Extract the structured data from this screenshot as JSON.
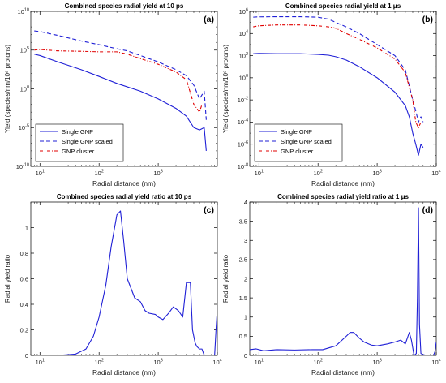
{
  "colors": {
    "blue": "#1f1fd6",
    "red": "#e00000",
    "axis": "#000000"
  },
  "chart_data": [
    {
      "panel": "(a)",
      "type": "line",
      "title": "Combined species radial yield at 10 ps",
      "xlabel": "Radial distance (nm)",
      "ylabel": "Yield (species/nm/10⁶ protons)",
      "xscale": "log",
      "yscale": "log",
      "xlim": [
        7,
        10000
      ],
      "ylim": [
        1e-10,
        10000000000.0
      ],
      "xticks": [
        {
          "v": 10,
          "m": "10",
          "e": "1"
        },
        {
          "v": 100,
          "m": "10",
          "e": "2"
        },
        {
          "v": 1000,
          "m": "10",
          "e": "3"
        }
      ],
      "yticks": [
        {
          "v": 1e-10,
          "m": "10",
          "e": "-10"
        },
        {
          "v": 1e-05,
          "m": "10",
          "e": "-5"
        },
        {
          "v": 1,
          "m": "10",
          "e": "0"
        },
        {
          "v": 100000.0,
          "m": "10",
          "e": "5"
        },
        {
          "v": 10000000000.0,
          "m": "10",
          "e": "10"
        }
      ],
      "legend": {
        "position": "bottom-left"
      },
      "series": [
        {
          "name": "Single GNP",
          "color": "#1f1fd6",
          "dash": "solid",
          "x": [
            8,
            10,
            20,
            50,
            100,
            200,
            500,
            1000,
            2000,
            3000,
            4000,
            5000,
            6000,
            6500
          ],
          "y": [
            30000.0,
            20000.0,
            3000.0,
            300,
            40,
            5,
            0.5,
            0.05,
            0.003,
            0.0003,
            1e-05,
            5e-06,
            1e-05,
            1e-08
          ]
        },
        {
          "name": "Single GNP scaled",
          "color": "#1f1fd6",
          "dash": "dashed",
          "x": [
            8,
            10,
            20,
            50,
            100,
            200,
            300,
            500,
            1000,
            2000,
            3000,
            4000,
            5000,
            6000,
            6500
          ],
          "y": [
            30000000.0,
            25000000.0,
            8000000.0,
            1500000.0,
            500000.0,
            150000.0,
            80000.0,
            20000.0,
            3000,
            300,
            50,
            3,
            0.05,
            0.5,
            0.0001
          ]
        },
        {
          "name": "GNP cluster",
          "color": "#e00000",
          "dash": "dashdot",
          "x": [
            8,
            10,
            20,
            50,
            100,
            200,
            300,
            500,
            1000,
            2000,
            3000,
            4000,
            5000,
            5500
          ],
          "y": [
            100000.0,
            120000.0,
            80000.0,
            70000.0,
            60000.0,
            60000.0,
            30000.0,
            8000,
            1500,
            150,
            15,
            0.01,
            0.001,
            0.01
          ]
        }
      ]
    },
    {
      "panel": "(b)",
      "type": "line",
      "title": "Combined species radial yield at 1 μs",
      "xlabel": "Radial distance (nm)",
      "ylabel": "Yield (species/nm/10⁶ protons)",
      "xscale": "log",
      "yscale": "log",
      "xlim": [
        7,
        10000
      ],
      "ylim": [
        1e-08,
        1000000.0
      ],
      "xticks": [
        {
          "v": 10,
          "m": "10",
          "e": "1"
        },
        {
          "v": 100,
          "m": "10",
          "e": "2"
        },
        {
          "v": 1000,
          "m": "10",
          "e": "3"
        },
        {
          "v": 10000,
          "m": "10",
          "e": "4"
        }
      ],
      "yticks": [
        {
          "v": 1e-08,
          "m": "10",
          "e": "-8"
        },
        {
          "v": 1e-06,
          "m": "10",
          "e": "-6"
        },
        {
          "v": 0.0001,
          "m": "10",
          "e": "-4"
        },
        {
          "v": 0.01,
          "m": "10",
          "e": "-2"
        },
        {
          "v": 1,
          "m": "10",
          "e": "0"
        },
        {
          "v": 100,
          "m": "10",
          "e": "2"
        },
        {
          "v": 10000.0,
          "m": "10",
          "e": "4"
        },
        {
          "v": 1000000.0,
          "m": "10",
          "e": "6"
        }
      ],
      "legend": {
        "position": "bottom-left"
      },
      "series": [
        {
          "name": "Single GNP",
          "color": "#1f1fd6",
          "dash": "solid",
          "x": [
            8,
            10,
            20,
            50,
            100,
            150,
            200,
            300,
            500,
            1000,
            2000,
            3000,
            3500,
            4000,
            4500,
            5000,
            5500,
            6000
          ],
          "y": [
            150,
            160,
            150,
            150,
            130,
            110,
            80,
            40,
            10,
            1,
            0.05,
            0.003,
            0.0003,
            1e-05,
            1e-06,
            1e-07,
            1e-06,
            5e-07
          ]
        },
        {
          "name": "Single GNP scaled",
          "color": "#1f1fd6",
          "dash": "dashed",
          "x": [
            8,
            10,
            20,
            50,
            100,
            150,
            200,
            300,
            500,
            1000,
            2000,
            3000,
            4000,
            4500,
            5000,
            5500,
            6000
          ],
          "y": [
            300000.0,
            320000.0,
            330000.0,
            330000.0,
            300000.0,
            200000.0,
            100000.0,
            40000.0,
            10000.0,
            1000,
            100,
            5,
            0.01,
            0.001,
            0.0001,
            0.0003,
            0.0001
          ]
        },
        {
          "name": "GNP cluster",
          "color": "#e00000",
          "dash": "dashdot",
          "x": [
            8,
            10,
            20,
            50,
            100,
            150,
            200,
            300,
            500,
            1000,
            2000,
            3000,
            4000,
            4500,
            5000,
            5500
          ],
          "y": [
            40000.0,
            50000.0,
            60000.0,
            60000.0,
            50000.0,
            40000.0,
            30000.0,
            10000.0,
            3000,
            500,
            50,
            3,
            0.01,
            0.0001,
            3e-05,
            0.0001
          ]
        }
      ]
    },
    {
      "panel": "(c)",
      "type": "line",
      "title": "Combined species radial yield ratio at 10 ps",
      "xlabel": "Radial distance (nm)",
      "ylabel": "Radial yield ratio",
      "xscale": "log",
      "yscale": "linear",
      "xlim": [
        7,
        10000
      ],
      "ylim": [
        0,
        1.2
      ],
      "xticks": [
        {
          "v": 10,
          "m": "10",
          "e": "1"
        },
        {
          "v": 100,
          "m": "10",
          "e": "2"
        },
        {
          "v": 1000,
          "m": "10",
          "e": "3"
        },
        {
          "v": 10000,
          "m": "10",
          "e": "4"
        }
      ],
      "yticks": [
        {
          "v": 0,
          "m": "0"
        },
        {
          "v": 0.2,
          "m": "0.2"
        },
        {
          "v": 0.4,
          "m": "0.4"
        },
        {
          "v": 0.6,
          "m": "0.6"
        },
        {
          "v": 0.8,
          "m": "0.8"
        },
        {
          "v": 1,
          "m": "1"
        }
      ],
      "series": [
        {
          "name": "",
          "color": "#1f1fd6",
          "dash": "solid",
          "x": [
            7,
            20,
            40,
            60,
            80,
            100,
            130,
            160,
            200,
            230,
            260,
            300,
            400,
            500,
            600,
            700,
            900,
            1000,
            1200,
            1500,
            1800,
            2200,
            2600,
            3000,
            3200,
            3500,
            3800,
            4200,
            4500,
            5000,
            5500,
            6000,
            7000,
            8000,
            9000,
            9500,
            9800,
            10000
          ],
          "y": [
            0,
            0,
            0.01,
            0.05,
            0.15,
            0.3,
            0.55,
            0.85,
            1.1,
            1.13,
            0.9,
            0.6,
            0.45,
            0.42,
            0.35,
            0.33,
            0.32,
            0.3,
            0.28,
            0.33,
            0.38,
            0.35,
            0.3,
            0.57,
            0.57,
            0.57,
            0.2,
            0.1,
            0.07,
            0.05,
            0.05,
            0,
            0,
            0,
            0,
            0.2,
            0.3,
            0.33
          ]
        }
      ]
    },
    {
      "panel": "(d)",
      "type": "line",
      "title": "Combined species radial yield ratio at 1 μs",
      "xlabel": "Radial distance (nm)",
      "ylabel": "Radial yield ratio",
      "xscale": "log",
      "yscale": "linear",
      "xlim": [
        7,
        10000
      ],
      "ylim": [
        0,
        4
      ],
      "xticks": [
        {
          "v": 10,
          "m": "10",
          "e": "1"
        },
        {
          "v": 100,
          "m": "10",
          "e": "2"
        },
        {
          "v": 1000,
          "m": "10",
          "e": "3"
        },
        {
          "v": 10000,
          "m": "10",
          "e": "4"
        }
      ],
      "yticks": [
        {
          "v": 0,
          "m": "0"
        },
        {
          "v": 0.5,
          "m": "0.5"
        },
        {
          "v": 1,
          "m": "1"
        },
        {
          "v": 1.5,
          "m": "1.5"
        },
        {
          "v": 2,
          "m": "2"
        },
        {
          "v": 2.5,
          "m": "2.5"
        },
        {
          "v": 3,
          "m": "3"
        },
        {
          "v": 3.5,
          "m": "3.5"
        },
        {
          "v": 4,
          "m": "4"
        }
      ],
      "series": [
        {
          "name": "",
          "color": "#1f1fd6",
          "dash": "solid",
          "x": [
            7,
            9,
            12,
            20,
            40,
            80,
            120,
            200,
            300,
            350,
            400,
            500,
            600,
            800,
            1000,
            1500,
            2000,
            2500,
            3000,
            3500,
            3800,
            4000,
            4200,
            4600,
            4800,
            5000,
            5200,
            5500,
            6000,
            7000,
            8000,
            9000,
            9500,
            10000
          ],
          "y": [
            0.15,
            0.17,
            0.12,
            0.15,
            0.14,
            0.15,
            0.15,
            0.25,
            0.5,
            0.6,
            0.6,
            0.45,
            0.35,
            0.27,
            0.25,
            0.3,
            0.35,
            0.4,
            0.3,
            0.6,
            0.4,
            0.2,
            0,
            0.05,
            1.5,
            3.85,
            0.8,
            0.05,
            0.02,
            0,
            0,
            0,
            0.1,
            0.35
          ]
        }
      ]
    }
  ]
}
